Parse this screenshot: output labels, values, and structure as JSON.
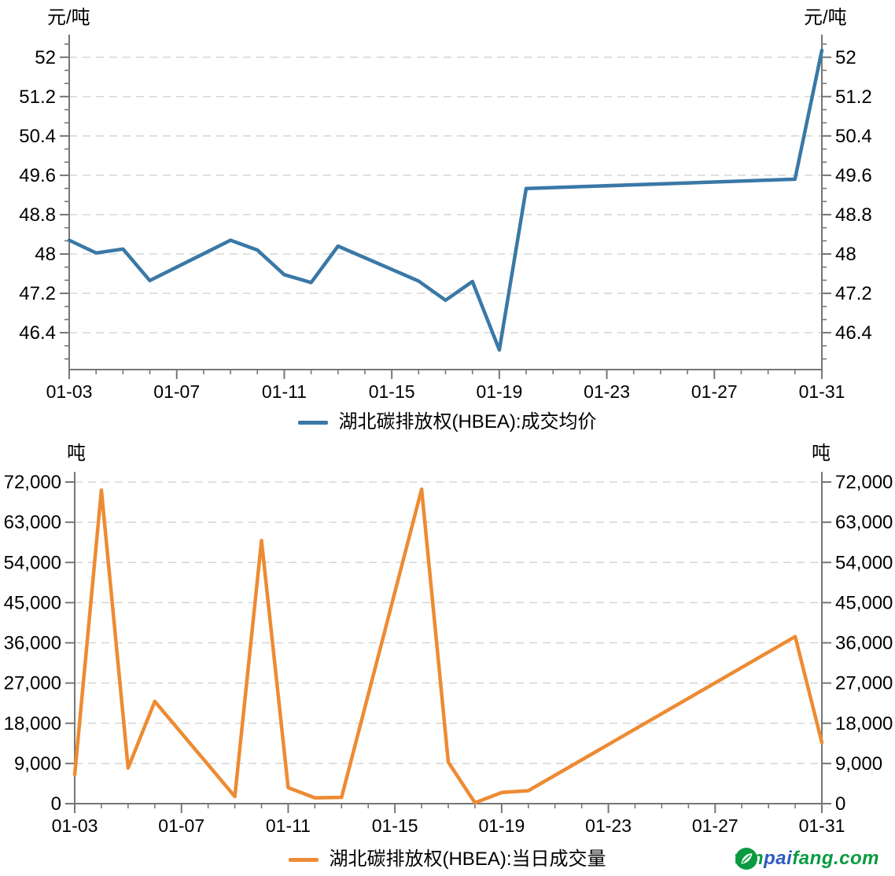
{
  "page": {
    "background": "#ffffff"
  },
  "chart_data": [
    {
      "type": "line",
      "legend_label": "湖北碳排放权(HBEA):成交均价",
      "unit": "元/吨",
      "line_color": "#3a78a6",
      "grid": "horizontal-dashed",
      "legend_position": "bottom-center",
      "y_axis_sides": "both",
      "ylim": [
        45.65,
        52.46
      ],
      "y_minor_step": 0.26667,
      "y_ticks": [
        {
          "v": 46.4,
          "label": "46.4"
        },
        {
          "v": 47.2,
          "label": "47.2"
        },
        {
          "v": 48,
          "label": "48"
        },
        {
          "v": 48.8,
          "label": "48.8"
        },
        {
          "v": 49.6,
          "label": "49.6"
        },
        {
          "v": 50.4,
          "label": "50.4"
        },
        {
          "v": 51.2,
          "label": "51.2"
        },
        {
          "v": 52,
          "label": "52"
        }
      ],
      "x_axis": {
        "start": "01-03",
        "end": "01-31",
        "days": 28,
        "tick_every_days": 1,
        "label_every_days": 4,
        "labels": [
          "01-03",
          "01-07",
          "01-11",
          "01-15",
          "01-19",
          "01-23",
          "01-27",
          "01-31"
        ]
      },
      "x": [
        "01-03",
        "01-04",
        "01-05",
        "01-06",
        "01-09",
        "01-10",
        "01-11",
        "01-12",
        "01-13",
        "01-16",
        "01-17",
        "01-18",
        "01-19",
        "01-20",
        "01-30",
        "01-31"
      ],
      "values": [
        48.28,
        48.02,
        48.1,
        47.46,
        48.28,
        48.08,
        47.58,
        47.42,
        48.16,
        47.45,
        47.06,
        47.44,
        46.05,
        49.33,
        49.52,
        52.14
      ]
    },
    {
      "type": "line",
      "legend_label": "湖北碳排放权(HBEA):当日成交量",
      "unit": "吨",
      "line_color": "#ed8b33",
      "grid": "horizontal-dashed",
      "legend_position": "bottom-center",
      "y_axis_sides": "both",
      "ylim": [
        0,
        74290
      ],
      "y_minor_step": null,
      "y_ticks": [
        {
          "v": 0,
          "label": "0"
        },
        {
          "v": 9000,
          "label": "9,000"
        },
        {
          "v": 18000,
          "label": "18,000"
        },
        {
          "v": 27000,
          "label": "27,000"
        },
        {
          "v": 36000,
          "label": "36,000"
        },
        {
          "v": 45000,
          "label": "45,000"
        },
        {
          "v": 54000,
          "label": "54,000"
        },
        {
          "v": 63000,
          "label": "63,000"
        },
        {
          "v": 72000,
          "label": "72,000"
        }
      ],
      "x_axis": {
        "start": "01-03",
        "end": "01-31",
        "days": 28,
        "tick_every_days": 1,
        "label_every_days": 4,
        "labels": [
          "01-03",
          "01-07",
          "01-11",
          "01-15",
          "01-19",
          "01-23",
          "01-27",
          "01-31"
        ]
      },
      "x": [
        "01-03",
        "01-04",
        "01-05",
        "01-06",
        "01-09",
        "01-10",
        "01-11",
        "01-12",
        "01-13",
        "01-16",
        "01-17",
        "01-18",
        "01-19",
        "01-20",
        "01-30",
        "01-31"
      ],
      "values": [
        6500,
        70200,
        8000,
        22900,
        1600,
        58900,
        3600,
        1300,
        1400,
        70400,
        9300,
        200,
        2500,
        2900,
        37400,
        13700
      ]
    }
  ],
  "logo": {
    "icon_color": "#0a9b41",
    "parts": [
      {
        "text": "tan",
        "color": "#0a9b41"
      },
      {
        "text": "pai",
        "color": "#2f5bc0"
      },
      {
        "text": "fang.com",
        "color": "#0a9b41"
      }
    ]
  }
}
